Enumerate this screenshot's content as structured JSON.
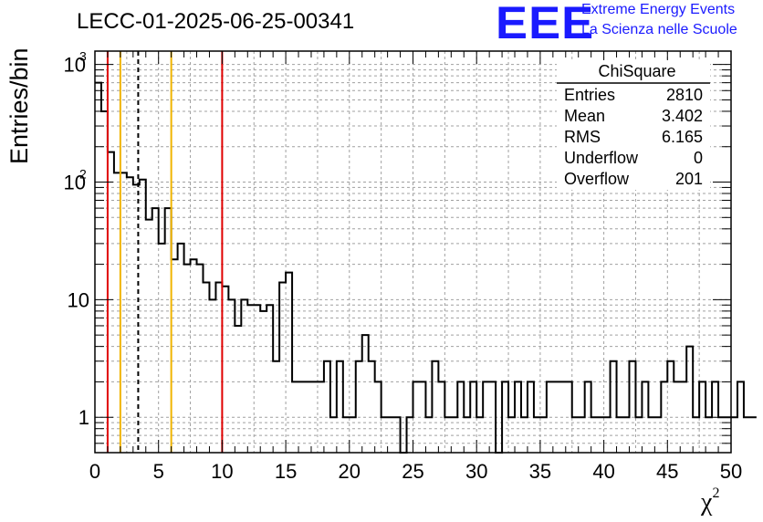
{
  "header": {
    "title": "LECC-01-2025-06-25-00341",
    "logo_text": "EEE",
    "logo_line1": "Extreme Energy Events",
    "logo_line2": "La Scienza nelle Scuole"
  },
  "colors": {
    "logo": "#1a1aff",
    "red_line": "#e00000",
    "yellow_line": "#f0b400",
    "grid": "#a0a0a0"
  },
  "chart_data": {
    "type": "histogram",
    "xlabel": "χ",
    "xlabel_sup": "2",
    "ylabel": "Entries/bin",
    "xlim": [
      0,
      50
    ],
    "ylim": [
      0.5,
      1300
    ],
    "yscale": "log",
    "grid": true,
    "bin_width": 0.5,
    "x_ticks": [
      "0",
      "5",
      "10",
      "15",
      "20",
      "25",
      "30",
      "35",
      "40",
      "45",
      "50"
    ],
    "y_ticks": [
      {
        "value": 1,
        "label": "1",
        "sup": ""
      },
      {
        "value": 10,
        "label": "10",
        "sup": ""
      },
      {
        "value": 100,
        "label": "10",
        "sup": "2"
      },
      {
        "value": 1000,
        "label": "10",
        "sup": "3"
      }
    ],
    "bin_contents": [
      700,
      400,
      180,
      120,
      120,
      110,
      95,
      105,
      48,
      60,
      30,
      60,
      22,
      30,
      20,
      22,
      20,
      14,
      10,
      14,
      13,
      10,
      6,
      10,
      9,
      9,
      8,
      9,
      3,
      14,
      17,
      2,
      2,
      2,
      2,
      2,
      3,
      1,
      3,
      1,
      1,
      3,
      5,
      3,
      2,
      1,
      1,
      1,
      0.5,
      1,
      2,
      2,
      1,
      3,
      2,
      1,
      1,
      2,
      1,
      2,
      1,
      2,
      2,
      0.5,
      2,
      1,
      2,
      1,
      2,
      1,
      1,
      2,
      2,
      2,
      2,
      1,
      1,
      2,
      1,
      1,
      1,
      3,
      1,
      1,
      3,
      1,
      2,
      1,
      1,
      2,
      3,
      2,
      2,
      4,
      1,
      2,
      1,
      2,
      1,
      1,
      1,
      2,
      1,
      1
    ],
    "vertical_lines": [
      {
        "x": 1,
        "color": "red",
        "style": "solid"
      },
      {
        "x": 2,
        "color": "yellow",
        "style": "solid"
      },
      {
        "x": 3.402,
        "color": "black",
        "style": "dashed"
      },
      {
        "x": 6,
        "color": "yellow",
        "style": "solid"
      },
      {
        "x": 10,
        "color": "red",
        "style": "solid"
      }
    ],
    "stats_box": {
      "title": "ChiSquare",
      "rows": [
        {
          "label": "Entries",
          "value": "2810"
        },
        {
          "label": "Mean",
          "value": "3.402"
        },
        {
          "label": "RMS",
          "value": "6.165"
        },
        {
          "label": "Underflow",
          "value": "0"
        },
        {
          "label": "Overflow",
          "value": "201"
        }
      ]
    }
  }
}
